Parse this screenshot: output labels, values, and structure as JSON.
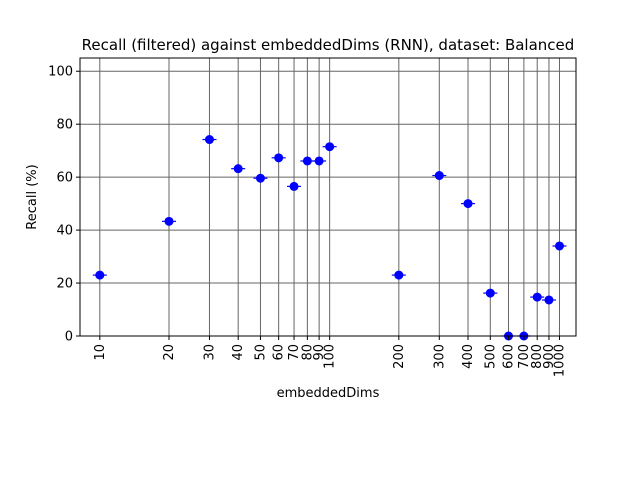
{
  "chart_data": {
    "type": "scatter",
    "title": "Recall (filtered) against embeddedDims (RNN), dataset: Balanced",
    "xlabel": "embeddedDims",
    "ylabel": "Recall (%)",
    "xscale": "log",
    "xlim": [
      8.2,
      1180
    ],
    "ylim": [
      0,
      105
    ],
    "x_ticks": [
      10,
      20,
      30,
      40,
      50,
      60,
      70,
      80,
      90,
      100,
      200,
      300,
      400,
      500,
      600,
      700,
      800,
      900,
      1000
    ],
    "x_tick_labels": [
      "10",
      "20",
      "30",
      "40",
      "50",
      "60",
      "70",
      "80",
      "90",
      "100",
      "200",
      "300",
      "400",
      "500",
      "600",
      "700",
      "800",
      "900",
      "1000"
    ],
    "y_ticks": [
      0,
      20,
      40,
      60,
      80,
      100
    ],
    "y_tick_labels": [
      "0",
      "20",
      "40",
      "60",
      "80",
      "100"
    ],
    "grid": true,
    "marker_color": "#0000ff",
    "grid_color": "#666666",
    "points": [
      {
        "x": 10,
        "y": 23.0
      },
      {
        "x": 20,
        "y": 43.3
      },
      {
        "x": 30,
        "y": 74.2
      },
      {
        "x": 40,
        "y": 63.2
      },
      {
        "x": 50,
        "y": 59.6
      },
      {
        "x": 60,
        "y": 67.3
      },
      {
        "x": 70,
        "y": 56.5
      },
      {
        "x": 80,
        "y": 66.1
      },
      {
        "x": 90,
        "y": 66.1
      },
      {
        "x": 100,
        "y": 71.5
      },
      {
        "x": 200,
        "y": 23.0
      },
      {
        "x": 300,
        "y": 60.6
      },
      {
        "x": 400,
        "y": 50.0
      },
      {
        "x": 500,
        "y": 16.2
      },
      {
        "x": 600,
        "y": 0.0
      },
      {
        "x": 700,
        "y": 0.0
      },
      {
        "x": 800,
        "y": 14.7
      },
      {
        "x": 900,
        "y": 13.6
      },
      {
        "x": 1000,
        "y": 34.0
      }
    ]
  }
}
